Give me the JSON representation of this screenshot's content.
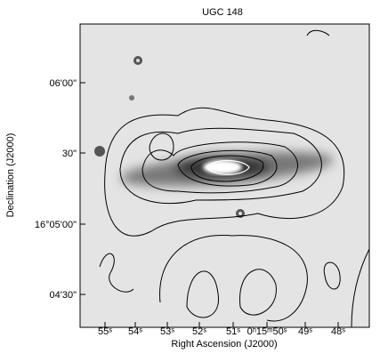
{
  "figure": {
    "title": "UGC 148",
    "x_label": "Right Ascension (J2000)",
    "y_label": "Declination (J2000)",
    "x_ticks": [
      "55ˢ",
      "54ˢ",
      "53ˢ",
      "52ˢ",
      "51ˢ",
      "0ʰ15ᵐ50ˢ",
      "49ˢ",
      "48ˢ"
    ],
    "y_ticks": [
      "06'00\"",
      "30\"",
      "16°05'00\"",
      "04'30\""
    ]
  }
}
